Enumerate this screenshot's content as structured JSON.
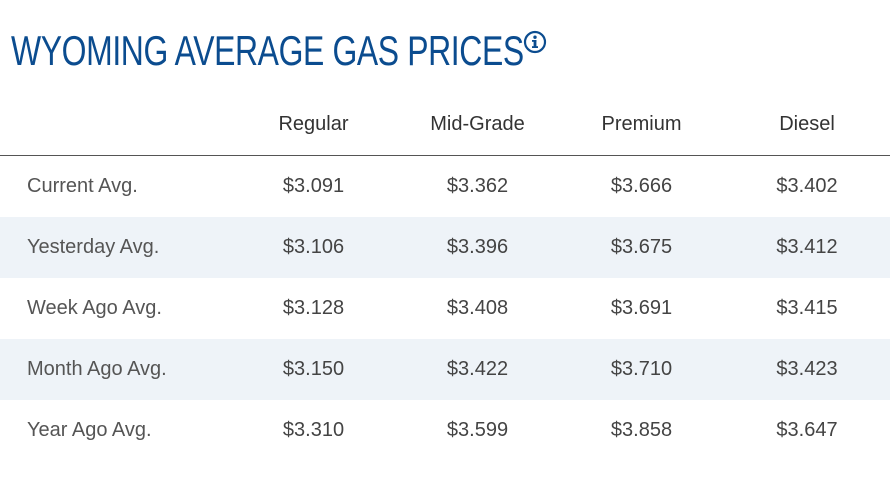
{
  "title": "WYOMING AVERAGE GAS PRICES",
  "icons": {
    "info": "info-circle-icon"
  },
  "colors": {
    "title": "#0b4c8f",
    "stripe": "#eef3f8",
    "text": "#444444"
  },
  "table": {
    "headers": [
      "Regular",
      "Mid-Grade",
      "Premium",
      "Diesel"
    ],
    "rows": [
      {
        "label": "Current Avg.",
        "values": [
          "$3.091",
          "$3.362",
          "$3.666",
          "$3.402"
        ]
      },
      {
        "label": "Yesterday Avg.",
        "values": [
          "$3.106",
          "$3.396",
          "$3.675",
          "$3.412"
        ]
      },
      {
        "label": "Week Ago Avg.",
        "values": [
          "$3.128",
          "$3.408",
          "$3.691",
          "$3.415"
        ]
      },
      {
        "label": "Month Ago Avg.",
        "values": [
          "$3.150",
          "$3.422",
          "$3.710",
          "$3.423"
        ]
      },
      {
        "label": "Year Ago Avg.",
        "values": [
          "$3.310",
          "$3.599",
          "$3.858",
          "$3.647"
        ]
      }
    ]
  }
}
